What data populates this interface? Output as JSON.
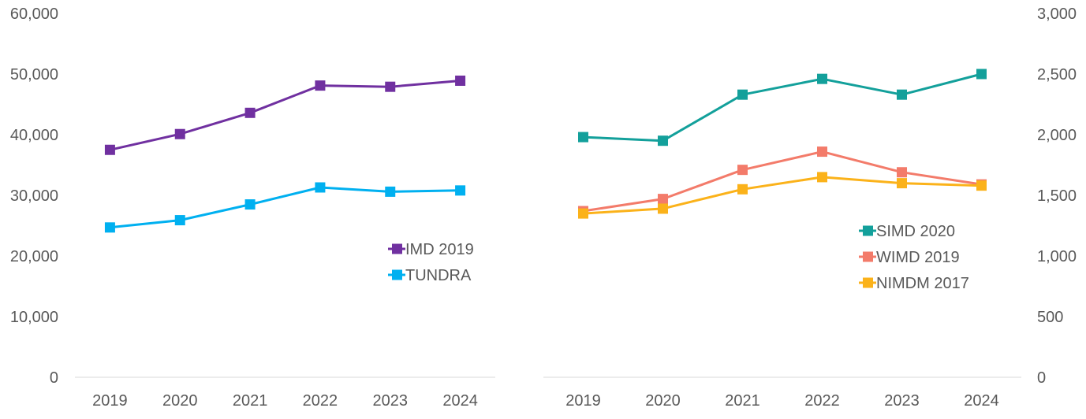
{
  "chart_data": [
    {
      "type": "line",
      "categories": [
        "2019",
        "2020",
        "2021",
        "2022",
        "2023",
        "2024"
      ],
      "ylim": [
        0,
        60000
      ],
      "yticks": [
        0,
        10000,
        20000,
        30000,
        40000,
        50000,
        60000
      ],
      "ytick_labels": [
        "0",
        "10,000",
        "20,000",
        "30,000",
        "40,000",
        "50,000",
        "60,000"
      ],
      "y_axis_side": "left",
      "grid": false,
      "legend_placement": "right-middle",
      "series": [
        {
          "name": "IMD 2019",
          "color": "#7030A0",
          "values": [
            37500,
            40100,
            43600,
            48100,
            47900,
            48900
          ]
        },
        {
          "name": "TUNDRA",
          "color": "#00B0F0",
          "values": [
            24700,
            25900,
            28500,
            31300,
            30600,
            30800
          ]
        }
      ]
    },
    {
      "type": "line",
      "categories": [
        "2019",
        "2020",
        "2021",
        "2022",
        "2023",
        "2024"
      ],
      "ylim": [
        0,
        3000
      ],
      "yticks": [
        0,
        500,
        1000,
        1500,
        2000,
        2500,
        3000
      ],
      "ytick_labels": [
        "0",
        "500",
        "1,000",
        "1,500",
        "2,000",
        "2,500",
        "3,000"
      ],
      "y_axis_side": "right",
      "grid": false,
      "legend_placement": "right-middle",
      "series": [
        {
          "name": "SIMD 2020",
          "color": "#13A09B",
          "values": [
            1980,
            1950,
            2330,
            2460,
            2330,
            2500
          ]
        },
        {
          "name": "WIMD 2019",
          "color": "#F37B6A",
          "values": [
            1370,
            1470,
            1710,
            1860,
            1690,
            1590
          ]
        },
        {
          "name": "NIMDM 2017",
          "color": "#FBB21A",
          "values": [
            1350,
            1390,
            1550,
            1650,
            1600,
            1580
          ]
        }
      ]
    }
  ]
}
